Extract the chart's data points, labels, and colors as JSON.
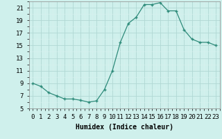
{
  "x": [
    0,
    1,
    2,
    3,
    4,
    5,
    6,
    7,
    8,
    9,
    10,
    11,
    12,
    13,
    14,
    15,
    16,
    17,
    18,
    19,
    20,
    21,
    22,
    23
  ],
  "y": [
    9.0,
    8.5,
    7.5,
    7.0,
    6.5,
    6.5,
    6.3,
    6.0,
    6.2,
    8.0,
    11.0,
    15.5,
    18.5,
    19.5,
    21.5,
    21.5,
    21.8,
    20.5,
    20.5,
    17.5,
    16.0,
    15.5,
    15.5,
    15.0
  ],
  "xlabel": "Humidex (Indice chaleur)",
  "line_color": "#2e8b7a",
  "marker": "+",
  "bg_color": "#cff0ec",
  "grid_major_color": "#b0d8d4",
  "grid_minor_color": "#d8f0ee",
  "xlim": [
    -0.5,
    23.5
  ],
  "ylim": [
    5,
    22
  ],
  "yticks": [
    5,
    7,
    9,
    11,
    13,
    15,
    17,
    19,
    21
  ],
  "xtick_labels": [
    "0",
    "1",
    "2",
    "3",
    "4",
    "5",
    "6",
    "7",
    "8",
    "9",
    "10",
    "11",
    "12",
    "13",
    "14",
    "15",
    "16",
    "17",
    "18",
    "19",
    "20",
    "21",
    "22",
    "23"
  ],
  "label_fontsize": 7,
  "tick_fontsize": 6.5
}
